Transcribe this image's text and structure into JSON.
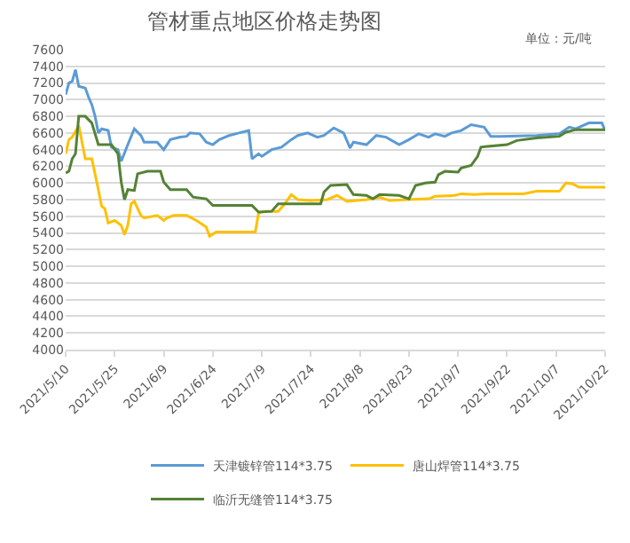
{
  "chart_data": {
    "type": "line",
    "title": "管材重点地区价格走势图",
    "subtitle": "单位：元/吨",
    "ylim": [
      4000,
      7600
    ],
    "yticks": [
      4000,
      4200,
      4400,
      4600,
      4800,
      5000,
      5200,
      5400,
      5600,
      5800,
      6000,
      6200,
      6400,
      6600,
      6800,
      7000,
      7200,
      7400,
      7600
    ],
    "xlim": [
      "2021-05-10",
      "2021-10-22"
    ],
    "xticks": [
      {
        "value": "2021-05-10",
        "label": "2021/5/10"
      },
      {
        "value": "2021-05-25",
        "label": "2021/5/25"
      },
      {
        "value": "2021-06-09",
        "label": "2021/6/9"
      },
      {
        "value": "2021-06-24",
        "label": "2021/6/24"
      },
      {
        "value": "2021-07-09",
        "label": "2021/7/9"
      },
      {
        "value": "2021-07-24",
        "label": "2021/7/24"
      },
      {
        "value": "2021-08-08",
        "label": "2021/8/8"
      },
      {
        "value": "2021-08-23",
        "label": "2021/8/23"
      },
      {
        "value": "2021-09-07",
        "label": "2021/9/7"
      },
      {
        "value": "2021-09-22",
        "label": "2021/9/22"
      },
      {
        "value": "2021-10-07",
        "label": "2021/10/7"
      },
      {
        "value": "2021-10-22",
        "label": "2021/10/22"
      }
    ],
    "grid": "y",
    "legend": "bottom",
    "marker": "none",
    "line_style": "solid",
    "series": [
      {
        "name": "天津镀锌管114*3.75",
        "color": "#5b9bd5",
        "x": [
          "2021-05-10",
          "2021-05-11",
          "2021-05-12",
          "2021-05-13",
          "2021-05-14",
          "2021-05-16",
          "2021-05-17",
          "2021-05-18",
          "2021-05-19",
          "2021-05-20",
          "2021-05-21",
          "2021-05-23",
          "2021-05-24",
          "2021-05-26",
          "2021-05-27",
          "2021-05-29",
          "2021-05-31",
          "2021-06-02",
          "2021-06-03",
          "2021-06-07",
          "2021-06-09",
          "2021-06-11",
          "2021-06-14",
          "2021-06-16",
          "2021-06-17",
          "2021-06-20",
          "2021-06-22",
          "2021-06-24",
          "2021-06-26",
          "2021-06-29",
          "2021-07-02",
          "2021-07-05",
          "2021-07-06",
          "2021-07-08",
          "2021-07-09",
          "2021-07-12",
          "2021-07-15",
          "2021-07-18",
          "2021-07-20",
          "2021-07-23",
          "2021-07-26",
          "2021-07-28",
          "2021-07-31",
          "2021-08-03",
          "2021-08-05",
          "2021-08-06",
          "2021-08-10",
          "2021-08-13",
          "2021-08-16",
          "2021-08-20",
          "2021-08-23",
          "2021-08-26",
          "2021-08-29",
          "2021-08-31",
          "2021-09-03",
          "2021-09-05",
          "2021-09-08",
          "2021-09-11",
          "2021-09-15",
          "2021-09-17",
          "2021-09-20",
          "2021-10-01",
          "2021-10-08",
          "2021-10-11",
          "2021-10-13",
          "2021-10-17",
          "2021-10-21",
          "2021-10-22"
        ],
        "values": [
          7060,
          7200,
          7220,
          7360,
          7160,
          7140,
          7030,
          6940,
          6800,
          6600,
          6650,
          6630,
          6430,
          6400,
          6260,
          6460,
          6650,
          6570,
          6490,
          6490,
          6400,
          6520,
          6550,
          6560,
          6600,
          6590,
          6490,
          6460,
          6520,
          6570,
          6600,
          6630,
          6290,
          6350,
          6320,
          6400,
          6430,
          6520,
          6570,
          6600,
          6550,
          6570,
          6660,
          6600,
          6420,
          6490,
          6460,
          6570,
          6550,
          6460,
          6520,
          6590,
          6550,
          6590,
          6560,
          6600,
          6630,
          6700,
          6670,
          6560,
          6560,
          6570,
          6590,
          6670,
          6650,
          6720,
          6720,
          6630
        ]
      },
      {
        "name": "唐山焊管114*3.75",
        "color": "#ffc000",
        "x": [
          "2021-05-10",
          "2021-05-11",
          "2021-05-12",
          "2021-05-14",
          "2021-05-15",
          "2021-05-16",
          "2021-05-18",
          "2021-05-20",
          "2021-05-21",
          "2021-05-22",
          "2021-05-23",
          "2021-05-25",
          "2021-05-27",
          "2021-05-28",
          "2021-05-29",
          "2021-05-30",
          "2021-05-31",
          "2021-06-02",
          "2021-06-03",
          "2021-06-07",
          "2021-06-09",
          "2021-06-10",
          "2021-06-12",
          "2021-06-16",
          "2021-06-19",
          "2021-06-22",
          "2021-06-23",
          "2021-06-25",
          "2021-06-28",
          "2021-07-07",
          "2021-07-08",
          "2021-07-10",
          "2021-07-14",
          "2021-07-16",
          "2021-07-18",
          "2021-07-20",
          "2021-07-24",
          "2021-07-29",
          "2021-08-01",
          "2021-08-04",
          "2021-08-10",
          "2021-08-14",
          "2021-08-17",
          "2021-08-22",
          "2021-08-29",
          "2021-08-31",
          "2021-09-06",
          "2021-09-08",
          "2021-09-12",
          "2021-09-16",
          "2021-09-27",
          "2021-10-01",
          "2021-10-08",
          "2021-10-10",
          "2021-10-12",
          "2021-10-14",
          "2021-10-22"
        ],
        "values": [
          6350,
          6520,
          6550,
          6690,
          6490,
          6290,
          6290,
          5920,
          5720,
          5690,
          5520,
          5550,
          5490,
          5380,
          5490,
          5750,
          5780,
          5610,
          5580,
          5610,
          5550,
          5580,
          5610,
          5610,
          5550,
          5470,
          5360,
          5410,
          5410,
          5410,
          5640,
          5660,
          5660,
          5750,
          5860,
          5800,
          5790,
          5800,
          5850,
          5780,
          5800,
          5830,
          5790,
          5800,
          5810,
          5840,
          5850,
          5870,
          5860,
          5870,
          5870,
          5900,
          5900,
          6000,
          5990,
          5950,
          5950
        ]
      },
      {
        "name": "临沂无缝管114*3.75",
        "color": "#548235",
        "x": [
          "2021-05-10",
          "2021-05-11",
          "2021-05-12",
          "2021-05-13",
          "2021-05-14",
          "2021-05-16",
          "2021-05-18",
          "2021-05-20",
          "2021-05-24",
          "2021-05-26",
          "2021-05-27",
          "2021-05-28",
          "2021-05-29",
          "2021-05-31",
          "2021-06-01",
          "2021-06-04",
          "2021-06-08",
          "2021-06-09",
          "2021-06-11",
          "2021-06-16",
          "2021-06-18",
          "2021-06-22",
          "2021-06-24",
          "2021-07-06",
          "2021-07-08",
          "2021-07-12",
          "2021-07-14",
          "2021-07-27",
          "2021-07-28",
          "2021-07-30",
          "2021-08-04",
          "2021-08-06",
          "2021-08-10",
          "2021-08-12",
          "2021-08-14",
          "2021-08-20",
          "2021-08-23",
          "2021-08-25",
          "2021-08-28",
          "2021-08-31",
          "2021-09-01",
          "2021-09-03",
          "2021-09-07",
          "2021-09-08",
          "2021-09-11",
          "2021-09-13",
          "2021-09-14",
          "2021-09-16",
          "2021-09-22",
          "2021-09-25",
          "2021-10-01",
          "2021-10-08",
          "2021-10-10",
          "2021-10-13",
          "2021-10-22"
        ],
        "values": [
          6120,
          6140,
          6290,
          6350,
          6800,
          6800,
          6720,
          6460,
          6460,
          6350,
          6010,
          5800,
          5920,
          5910,
          6110,
          6140,
          6140,
          6010,
          5920,
          5920,
          5830,
          5810,
          5730,
          5730,
          5650,
          5660,
          5750,
          5750,
          5890,
          5970,
          5980,
          5860,
          5850,
          5810,
          5860,
          5850,
          5810,
          5970,
          6000,
          6010,
          6100,
          6140,
          6130,
          6180,
          6210,
          6320,
          6430,
          6440,
          6460,
          6510,
          6540,
          6560,
          6610,
          6640,
          6640
        ]
      }
    ]
  }
}
